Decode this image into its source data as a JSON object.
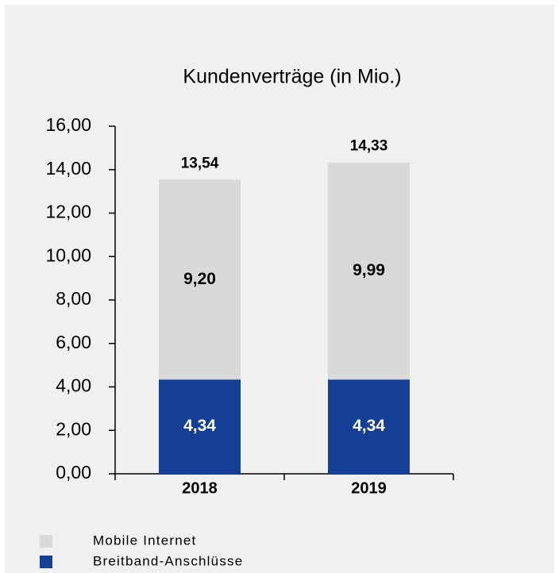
{
  "chart_data": {
    "type": "stacked_bar",
    "title": "Kundenverträge (in Mio.)",
    "categories": [
      "2018",
      "2019"
    ],
    "series": [
      {
        "name": "Breitband-Anschlüsse",
        "color": "#143f94",
        "label_color": "#ffffff",
        "values": [
          4.34,
          4.34
        ],
        "value_labels": [
          "4,34",
          "4,34"
        ]
      },
      {
        "name": "Mobile Internet",
        "color": "#d9d9d9",
        "label_color": "#000000",
        "values": [
          9.2,
          9.99
        ],
        "value_labels": [
          "9,20",
          "9,99"
        ]
      }
    ],
    "totals": [
      13.54,
      14.33
    ],
    "total_labels": [
      "13,54",
      "14,33"
    ],
    "ylim": [
      0,
      16
    ],
    "yticks": [
      {
        "value": 0,
        "label": "0,00"
      },
      {
        "value": 2,
        "label": "2,00"
      },
      {
        "value": 4,
        "label": "4,00"
      },
      {
        "value": 6,
        "label": "6,00"
      },
      {
        "value": 8,
        "label": "8,00"
      },
      {
        "value": 10,
        "label": "10,00"
      },
      {
        "value": 12,
        "label": "12,00"
      },
      {
        "value": 14,
        "label": "14,00"
      },
      {
        "value": 16,
        "label": "16,00"
      }
    ],
    "grid": false,
    "legend": "bottom-left"
  }
}
